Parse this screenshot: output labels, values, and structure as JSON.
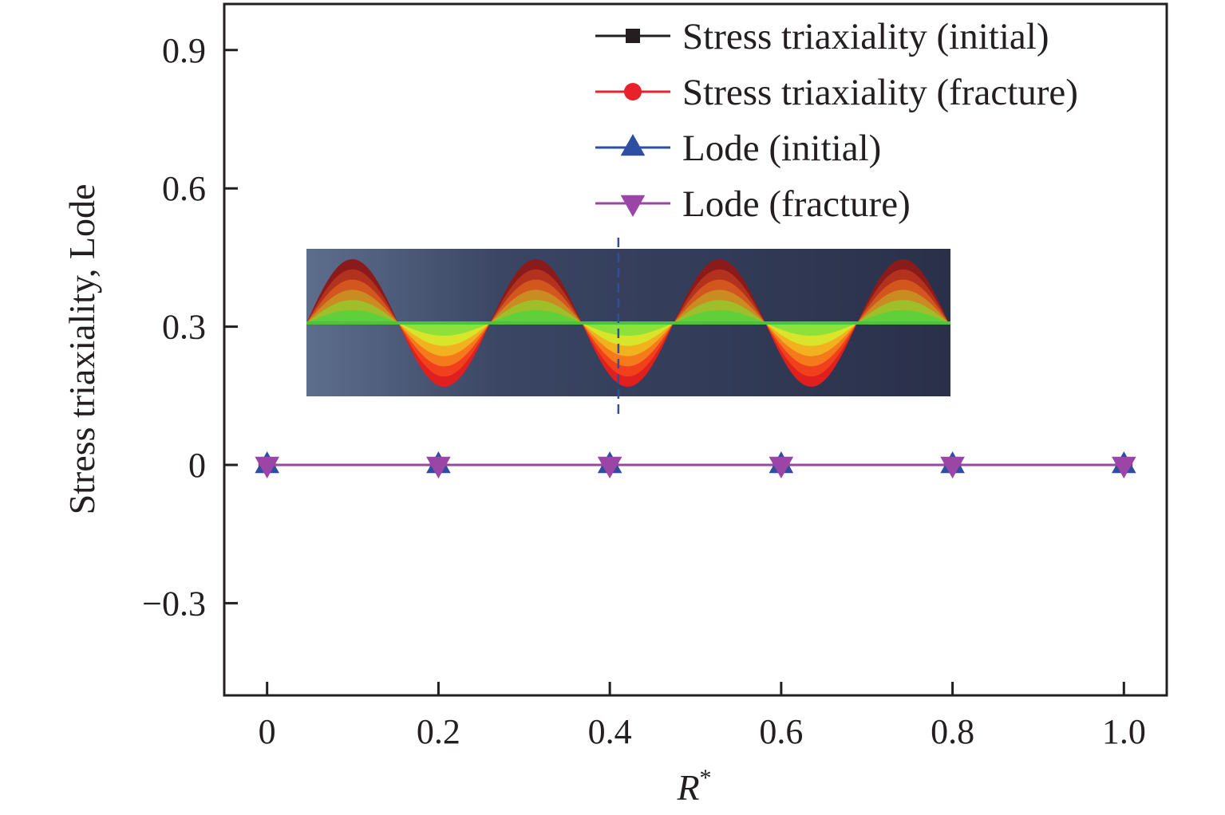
{
  "chart_data": {
    "type": "line",
    "xlabel": "R",
    "xlabel_superscript": "*",
    "ylabel": "Stress triaxiality, Lode",
    "xlim": [
      -0.05,
      1.05
    ],
    "ylim": [
      -0.5,
      1.0
    ],
    "x_ticks": [
      0,
      0.2,
      0.4,
      0.6,
      0.8,
      1.0
    ],
    "x_tick_labels": [
      "0",
      "0.2",
      "0.4",
      "0.6",
      "0.8",
      "1.0"
    ],
    "y_ticks": [
      -0.3,
      0,
      0.3,
      0.6,
      0.9
    ],
    "y_tick_labels": [
      "−0.3",
      "0",
      "0.3",
      "0.6",
      "0.9"
    ],
    "grid": false,
    "legend_position": "top-right",
    "x": [
      0,
      0.2,
      0.4,
      0.6,
      0.8,
      1.0
    ],
    "series": [
      {
        "name": "Stress triaxiality (initial)",
        "color": "#231f20",
        "marker": "square",
        "values": [
          0,
          0,
          0,
          0,
          0,
          0
        ]
      },
      {
        "name": "Stress triaxiality (fracture)",
        "color": "#e8212b",
        "marker": "circle",
        "values": [
          0,
          0,
          0,
          0,
          0,
          0
        ]
      },
      {
        "name": "Lode (initial)",
        "color": "#2e4ea1",
        "marker": "triangle-up",
        "values": [
          0,
          0,
          0,
          0,
          0,
          0
        ]
      },
      {
        "name": "Lode (fracture)",
        "color": "#9b45a7",
        "marker": "triangle-down",
        "values": [
          0,
          0,
          0,
          0,
          0,
          0
        ]
      }
    ],
    "inset": {
      "description_type": "simulation-image",
      "reference_line_x": 0.41,
      "reference_line_color": "#2e4ea1"
    }
  }
}
